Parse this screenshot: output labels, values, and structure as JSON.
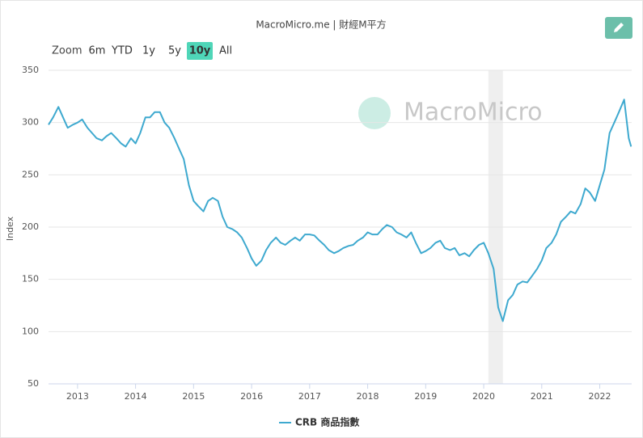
{
  "chart_data": {
    "type": "line",
    "title": "MacroMicro.me | 財經M平方",
    "watermark": "MacroMicro",
    "y_label": "Index",
    "range_selector": {
      "label": "Zoom",
      "buttons": [
        "6m",
        "YTD",
        "1y",
        "5y",
        "10y",
        "All"
      ],
      "selected": 4
    },
    "x": [
      2012.5,
      2012.58,
      2012.67,
      2012.75,
      2012.83,
      2012.92,
      2013.0,
      2013.08,
      2013.17,
      2013.25,
      2013.33,
      2013.42,
      2013.5,
      2013.58,
      2013.67,
      2013.75,
      2013.83,
      2013.92,
      2014.0,
      2014.08,
      2014.17,
      2014.25,
      2014.33,
      2014.42,
      2014.5,
      2014.58,
      2014.67,
      2014.75,
      2014.83,
      2014.92,
      2015.0,
      2015.08,
      2015.17,
      2015.25,
      2015.33,
      2015.42,
      2015.5,
      2015.58,
      2015.67,
      2015.75,
      2015.83,
      2015.92,
      2016.0,
      2016.08,
      2016.17,
      2016.25,
      2016.33,
      2016.42,
      2016.5,
      2016.58,
      2016.67,
      2016.75,
      2016.83,
      2016.92,
      2017.0,
      2017.08,
      2017.17,
      2017.25,
      2017.33,
      2017.42,
      2017.5,
      2017.58,
      2017.67,
      2017.75,
      2017.83,
      2017.92,
      2018.0,
      2018.08,
      2018.17,
      2018.25,
      2018.33,
      2018.42,
      2018.5,
      2018.58,
      2018.67,
      2018.75,
      2018.83,
      2018.92,
      2019.0,
      2019.08,
      2019.17,
      2019.25,
      2019.33,
      2019.42,
      2019.5,
      2019.58,
      2019.67,
      2019.75,
      2019.83,
      2019.92,
      2020.0,
      2020.08,
      2020.17,
      2020.25,
      2020.33,
      2020.42,
      2020.5,
      2020.58,
      2020.67,
      2020.75,
      2020.83,
      2020.92,
      2021.0,
      2021.08,
      2021.17,
      2021.25,
      2021.33,
      2021.42,
      2021.5,
      2021.58,
      2021.67,
      2021.75,
      2021.83,
      2021.92,
      2022.0,
      2022.08,
      2022.17,
      2022.25,
      2022.33,
      2022.42,
      2022.5,
      2022.54
    ],
    "series": [
      {
        "name": "CRB 商品指數",
        "color": "#3ea9cf",
        "values": [
          298,
          305,
          315,
          305,
          295,
          298,
          300,
          303,
          295,
          290,
          285,
          283,
          287,
          290,
          285,
          280,
          277,
          285,
          280,
          290,
          305,
          305,
          310,
          310,
          300,
          295,
          285,
          275,
          265,
          240,
          225,
          220,
          215,
          225,
          228,
          225,
          210,
          200,
          198,
          195,
          190,
          180,
          170,
          163,
          168,
          178,
          185,
          190,
          185,
          183,
          187,
          190,
          187,
          193,
          193,
          192,
          187,
          183,
          178,
          175,
          177,
          180,
          182,
          183,
          187,
          190,
          195,
          193,
          193,
          198,
          202,
          200,
          195,
          193,
          190,
          195,
          185,
          175,
          177,
          180,
          185,
          187,
          180,
          178,
          180,
          173,
          175,
          172,
          178,
          183,
          185,
          175,
          160,
          123,
          110,
          130,
          135,
          145,
          148,
          147,
          153,
          160,
          168,
          180,
          185,
          193,
          205,
          210,
          215,
          213,
          222,
          237,
          233,
          225,
          240,
          255,
          290,
          300,
          310,
          322,
          285,
          277
        ]
      }
    ],
    "plot_bands": [
      {
        "from": 2020.08,
        "to": 2020.33
      }
    ],
    "xlim": [
      2012.5,
      2022.55
    ],
    "xticks": [
      2013,
      2014,
      2015,
      2016,
      2017,
      2018,
      2019,
      2020,
      2021,
      2022
    ],
    "ylim": [
      50,
      350
    ],
    "yticks": [
      50,
      100,
      150,
      200,
      250,
      300,
      350
    ],
    "grid": true
  }
}
